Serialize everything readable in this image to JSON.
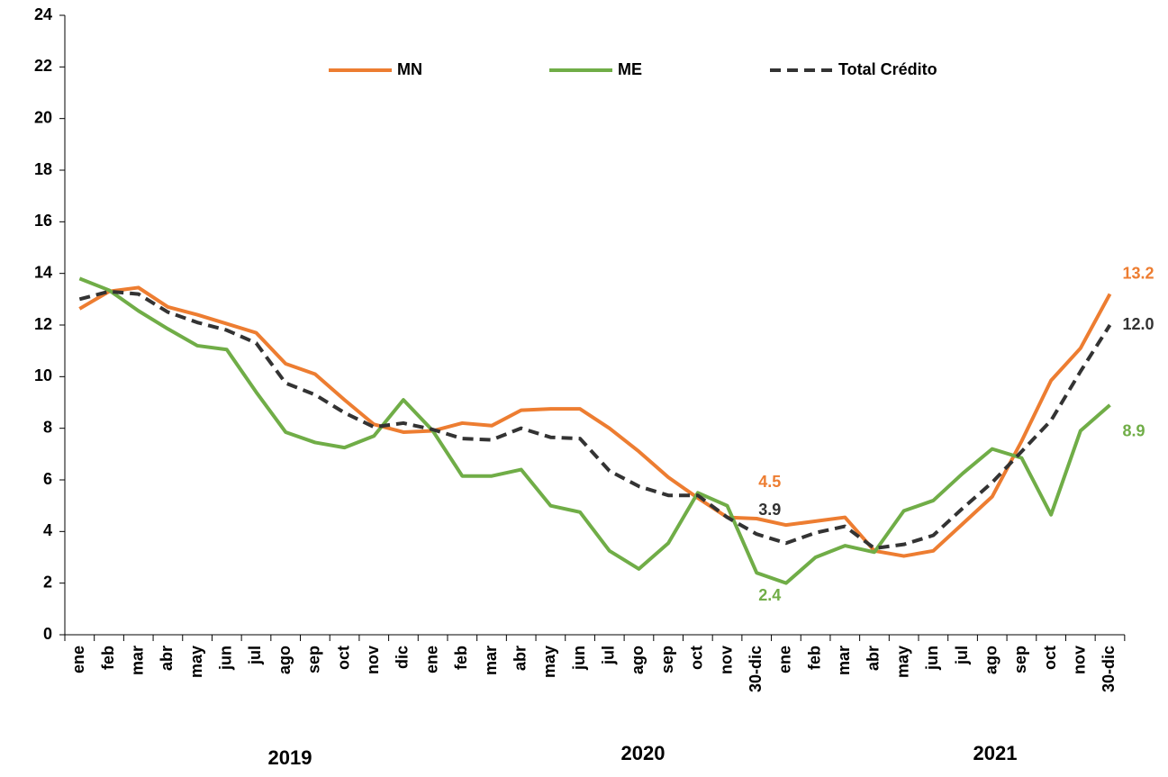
{
  "chart_data": {
    "type": "line",
    "categories": [
      "ene",
      "feb",
      "mar",
      "abr",
      "may",
      "jun",
      "jul",
      "ago",
      "sep",
      "oct",
      "nov",
      "dic",
      "ene",
      "feb",
      "mar",
      "abr",
      "may",
      "jun",
      "jul",
      "ago",
      "sep",
      "oct",
      "nov",
      "30-dic",
      "ene",
      "feb",
      "mar",
      "abr",
      "may",
      "jun",
      "jul",
      "ago",
      "sep",
      "oct",
      "nov",
      "30-dic"
    ],
    "x_groups": [
      "2019",
      "2020",
      "2021"
    ],
    "series": [
      {
        "name": "MN",
        "color": "#ed7d31",
        "dash": false,
        "values": [
          12.63,
          13.3,
          13.45,
          12.7,
          12.4,
          12.05,
          11.7,
          10.5,
          10.1,
          9.1,
          8.15,
          7.85,
          7.9,
          8.2,
          8.1,
          8.7,
          8.75,
          8.75,
          8.0,
          7.1,
          6.1,
          5.3,
          4.55,
          4.5,
          4.25,
          4.4,
          4.55,
          3.25,
          3.05,
          3.25,
          4.3,
          5.35,
          7.5,
          9.85,
          11.1,
          13.2
        ],
        "value_labels": [
          null,
          null,
          null,
          null,
          null,
          null,
          null,
          null,
          null,
          null,
          null,
          null,
          null,
          null,
          null,
          null,
          null,
          null,
          null,
          null,
          null,
          null,
          null,
          "4.5",
          null,
          null,
          null,
          null,
          null,
          null,
          null,
          null,
          null,
          null,
          null,
          "13.2"
        ]
      },
      {
        "name": "ME",
        "color": "#70ad47",
        "dash": false,
        "values": [
          13.8,
          13.35,
          12.55,
          11.85,
          11.2,
          11.05,
          9.4,
          7.85,
          7.45,
          7.25,
          7.7,
          9.1,
          7.9,
          6.15,
          6.15,
          6.4,
          5.0,
          4.75,
          3.25,
          2.55,
          3.55,
          5.5,
          5.0,
          2.4,
          2.0,
          3.0,
          3.45,
          3.2,
          4.8,
          5.2,
          6.25,
          7.2,
          6.85,
          4.65,
          7.9,
          8.9
        ],
        "value_labels": [
          null,
          null,
          null,
          null,
          null,
          null,
          null,
          null,
          null,
          null,
          null,
          null,
          null,
          null,
          null,
          null,
          null,
          null,
          null,
          null,
          null,
          null,
          null,
          "2.4",
          null,
          null,
          null,
          null,
          null,
          null,
          null,
          null,
          null,
          null,
          null,
          "8.9"
        ]
      },
      {
        "name": "Total Crédito",
        "color": "#333333",
        "dash": true,
        "values": [
          13.0,
          13.3,
          13.2,
          12.5,
          12.1,
          11.8,
          11.3,
          9.75,
          9.3,
          8.6,
          8.05,
          8.2,
          7.95,
          7.6,
          7.55,
          8.0,
          7.65,
          7.6,
          6.35,
          5.75,
          5.4,
          5.4,
          4.55,
          3.9,
          3.55,
          3.95,
          4.2,
          3.35,
          3.5,
          3.85,
          4.9,
          5.9,
          7.1,
          8.3,
          10.2,
          12.0
        ],
        "value_labels": [
          null,
          null,
          null,
          null,
          null,
          null,
          null,
          null,
          null,
          null,
          null,
          null,
          null,
          null,
          null,
          null,
          null,
          null,
          null,
          null,
          null,
          null,
          null,
          "3.9",
          null,
          null,
          null,
          null,
          null,
          null,
          null,
          null,
          null,
          null,
          null,
          "12.0"
        ]
      }
    ],
    "ylim": [
      0,
      24
    ],
    "yticks": [
      0,
      2,
      4,
      6,
      8,
      10,
      12,
      14,
      16,
      18,
      20,
      22,
      24
    ],
    "grid": false,
    "legend": "top"
  }
}
